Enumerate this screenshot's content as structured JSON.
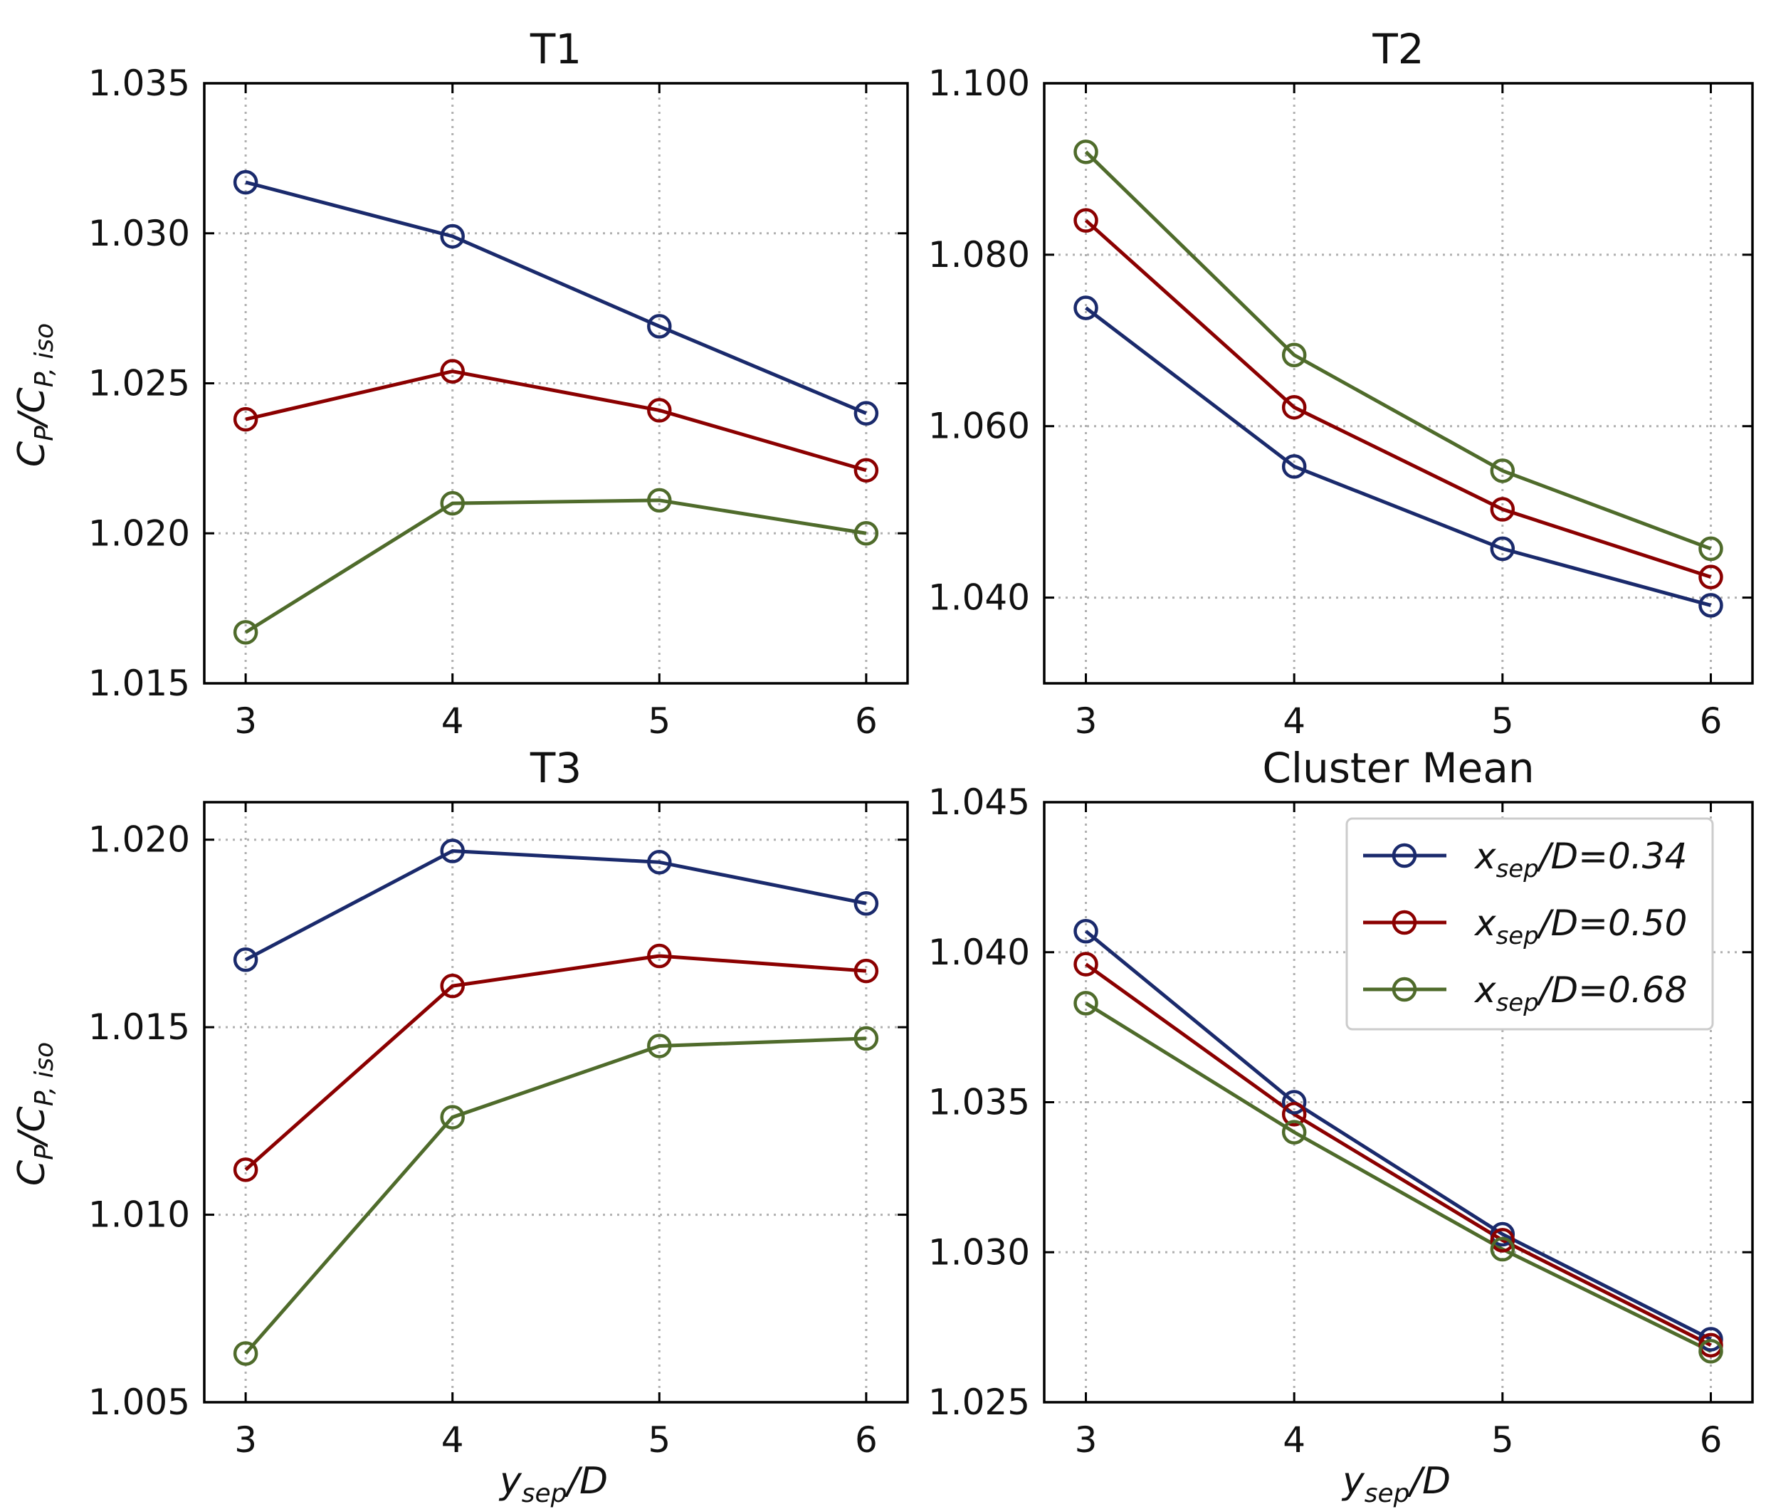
{
  "colors": {
    "series": [
      "#1a2a6c",
      "#8b0000",
      "#4f6b2b"
    ],
    "grid": "#b0b0b0",
    "axis": "#000000",
    "background": "#ffffff"
  },
  "legend": {
    "entries": [
      {
        "base": "x",
        "sub": "sep",
        "rest": "/D=0.34"
      },
      {
        "base": "x",
        "sub": "sep",
        "rest": "/D=0.50"
      },
      {
        "base": "x",
        "sub": "sep",
        "rest": "/D=0.68"
      }
    ]
  },
  "axis_labels": {
    "y": {
      "C": "C",
      "P": "P",
      "slash": "/C",
      "Piso": "P, iso"
    },
    "x": {
      "y": "y",
      "sub": "sep",
      "rest": "/D"
    }
  },
  "chart_data": [
    {
      "type": "line",
      "title": "T1",
      "x": [
        3,
        4,
        5,
        6
      ],
      "xticks": [
        "3",
        "4",
        "5",
        "6"
      ],
      "xlim": [
        2.8,
        6.2
      ],
      "ylim": [
        1.015,
        1.035
      ],
      "yticks": [
        1.015,
        1.02,
        1.025,
        1.03,
        1.035
      ],
      "ytick_labels": [
        "1.015",
        "1.020",
        "1.025",
        "1.030",
        "1.035"
      ],
      "ylabel": "C_P/C_P,iso",
      "xlabel": "",
      "series": [
        {
          "name": "x_sep/D=0.34",
          "values": [
            1.0317,
            1.0299,
            1.0269,
            1.024
          ]
        },
        {
          "name": "x_sep/D=0.50",
          "values": [
            1.0238,
            1.0254,
            1.0241,
            1.0221
          ]
        },
        {
          "name": "x_sep/D=0.68",
          "values": [
            1.0167,
            1.021,
            1.0211,
            1.02
          ]
        }
      ]
    },
    {
      "type": "line",
      "title": "T2",
      "x": [
        3,
        4,
        5,
        6
      ],
      "xticks": [
        "3",
        "4",
        "5",
        "6"
      ],
      "xlim": [
        2.8,
        6.2
      ],
      "ylim": [
        1.03,
        1.1
      ],
      "yticks": [
        1.04,
        1.06,
        1.08,
        1.1
      ],
      "ytick_labels": [
        "1.040",
        "1.060",
        "1.080",
        "1.100"
      ],
      "ylabel": "",
      "xlabel": "",
      "series": [
        {
          "name": "x_sep/D=0.34",
          "values": [
            1.0738,
            1.0553,
            1.0457,
            1.0391
          ]
        },
        {
          "name": "x_sep/D=0.50",
          "values": [
            1.084,
            1.0622,
            1.0503,
            1.0424
          ]
        },
        {
          "name": "x_sep/D=0.68",
          "values": [
            1.092,
            1.0683,
            1.0548,
            1.0457
          ]
        }
      ]
    },
    {
      "type": "line",
      "title": "T3",
      "x": [
        3,
        4,
        5,
        6
      ],
      "xticks": [
        "3",
        "4",
        "5",
        "6"
      ],
      "xlim": [
        2.8,
        6.2
      ],
      "ylim": [
        1.005,
        1.021
      ],
      "yticks": [
        1.005,
        1.01,
        1.015,
        1.02
      ],
      "ytick_labels": [
        "1.005",
        "1.010",
        "1.015",
        "1.020"
      ],
      "ylabel": "C_P/C_P,iso",
      "xlabel": "y_sep/D",
      "series": [
        {
          "name": "x_sep/D=0.34",
          "values": [
            1.0168,
            1.0197,
            1.0194,
            1.0183
          ]
        },
        {
          "name": "x_sep/D=0.50",
          "values": [
            1.0112,
            1.0161,
            1.0169,
            1.0165
          ]
        },
        {
          "name": "x_sep/D=0.68",
          "values": [
            1.0063,
            1.0126,
            1.0145,
            1.0147
          ]
        }
      ]
    },
    {
      "type": "line",
      "title": "Cluster Mean",
      "x": [
        3,
        4,
        5,
        6
      ],
      "xticks": [
        "3",
        "4",
        "5",
        "6"
      ],
      "xlim": [
        2.8,
        6.2
      ],
      "ylim": [
        1.025,
        1.045
      ],
      "yticks": [
        1.025,
        1.03,
        1.035,
        1.04,
        1.045
      ],
      "ytick_labels": [
        "1.025",
        "1.030",
        "1.035",
        "1.040",
        "1.045"
      ],
      "ylabel": "",
      "xlabel": "y_sep/D",
      "legend": "top-right",
      "series": [
        {
          "name": "x_sep/D=0.34",
          "values": [
            1.0407,
            1.035,
            1.0306,
            1.0271
          ]
        },
        {
          "name": "x_sep/D=0.50",
          "values": [
            1.0396,
            1.0346,
            1.0304,
            1.0269
          ]
        },
        {
          "name": "x_sep/D=0.68",
          "values": [
            1.0383,
            1.034,
            1.0301,
            1.0267
          ]
        }
      ]
    }
  ]
}
